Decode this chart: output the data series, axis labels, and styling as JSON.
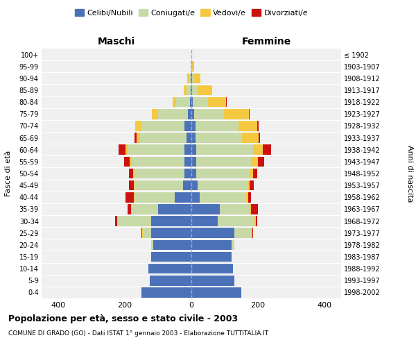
{
  "age_groups": [
    "0-4",
    "5-9",
    "10-14",
    "15-19",
    "20-24",
    "25-29",
    "30-34",
    "35-39",
    "40-44",
    "45-49",
    "50-54",
    "55-59",
    "60-64",
    "65-69",
    "70-74",
    "75-79",
    "80-84",
    "85-89",
    "90-94",
    "95-99",
    "100+"
  ],
  "birth_years": [
    "1998-2002",
    "1993-1997",
    "1988-1992",
    "1983-1987",
    "1978-1982",
    "1973-1977",
    "1968-1972",
    "1963-1967",
    "1958-1962",
    "1953-1957",
    "1948-1952",
    "1943-1947",
    "1938-1942",
    "1933-1937",
    "1928-1932",
    "1923-1927",
    "1918-1922",
    "1913-1917",
    "1908-1912",
    "1903-1907",
    "≤ 1902"
  ],
  "colors": {
    "celibi": "#4B72B8",
    "coniugati": "#C8D9A8",
    "vedovi": "#F5C842",
    "divorziati": "#CC1111"
  },
  "maschi": {
    "celibi": [
      150,
      125,
      130,
      120,
      115,
      120,
      120,
      100,
      50,
      25,
      20,
      20,
      20,
      15,
      20,
      10,
      5,
      3,
      2,
      1,
      0
    ],
    "coniugati": [
      0,
      0,
      0,
      0,
      5,
      25,
      100,
      80,
      120,
      145,
      150,
      160,
      170,
      140,
      130,
      90,
      40,
      12,
      5,
      1,
      0
    ],
    "vedovi": [
      0,
      0,
      0,
      0,
      0,
      2,
      2,
      2,
      2,
      3,
      5,
      5,
      8,
      10,
      18,
      18,
      12,
      8,
      5,
      1,
      0
    ],
    "divorziati": [
      0,
      0,
      0,
      0,
      0,
      3,
      8,
      10,
      25,
      15,
      12,
      18,
      20,
      5,
      0,
      0,
      0,
      0,
      0,
      0,
      0
    ]
  },
  "femmine": {
    "celibi": [
      150,
      130,
      125,
      120,
      120,
      130,
      80,
      85,
      25,
      18,
      15,
      15,
      15,
      12,
      12,
      8,
      5,
      3,
      2,
      1,
      0
    ],
    "coniugati": [
      0,
      0,
      0,
      0,
      10,
      50,
      110,
      90,
      140,
      150,
      160,
      165,
      170,
      140,
      130,
      90,
      45,
      15,
      5,
      2,
      0
    ],
    "vedovi": [
      0,
      0,
      0,
      0,
      0,
      3,
      3,
      5,
      5,
      8,
      10,
      20,
      30,
      50,
      55,
      75,
      55,
      45,
      20,
      5,
      1
    ],
    "divorziati": [
      0,
      0,
      0,
      0,
      0,
      2,
      5,
      20,
      10,
      12,
      12,
      18,
      25,
      5,
      5,
      2,
      2,
      0,
      0,
      0,
      0
    ]
  },
  "xlim": 450,
  "xticks": [
    -400,
    -200,
    0,
    200,
    400
  ],
  "title": "Popolazione per età, sesso e stato civile - 2003",
  "subtitle": "COMUNE DI GRADO (GO) - Dati ISTAT 1° gennaio 2003 - Elaborazione TUTTITALIA.IT",
  "xlabel_left": "Maschi",
  "xlabel_right": "Femmine",
  "ylabel_left": "Fasce di età",
  "ylabel_right": "Anni di nascita",
  "legend_labels": [
    "Celibi/Nubili",
    "Coniugati/e",
    "Vedovi/e",
    "Divorziati/e"
  ],
  "bg_color": "#FFFFFF",
  "plot_bg_color": "#F0F0F0",
  "grid_color": "#FFFFFF"
}
